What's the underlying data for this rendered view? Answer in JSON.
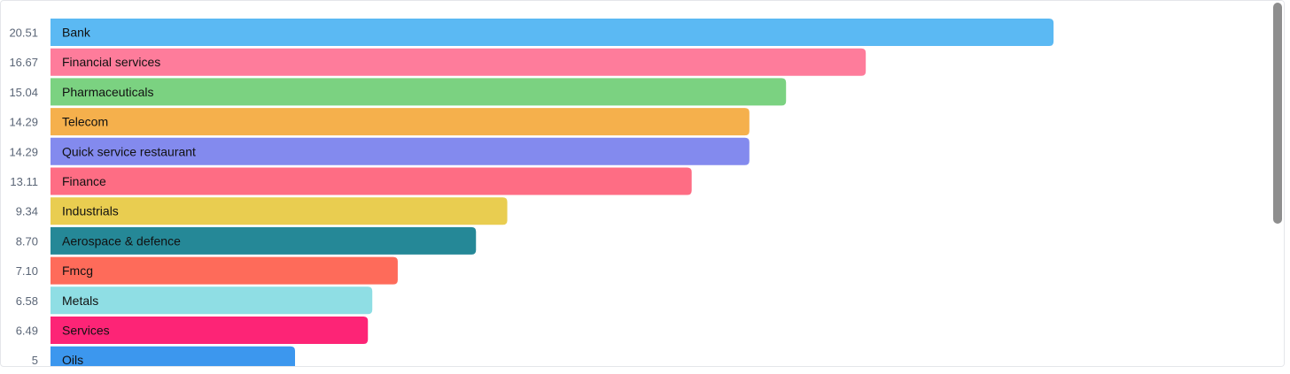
{
  "chart_data": {
    "type": "bar",
    "orientation": "horizontal",
    "categories": [
      "Bank",
      "Financial services",
      "Pharmaceuticals",
      "Telecom",
      "Quick service restaurant",
      "Finance",
      "Industrials",
      "Aerospace & defence",
      "Fmcg",
      "Metals",
      "Services",
      "Oils"
    ],
    "values": [
      20.51,
      16.67,
      15.04,
      14.29,
      14.29,
      13.11,
      9.34,
      8.7,
      7.1,
      6.58,
      6.49,
      5
    ],
    "value_labels": [
      "20.51",
      "16.67",
      "15.04",
      "14.29",
      "14.29",
      "13.11",
      "9.34",
      "8.70",
      "7.10",
      "6.58",
      "6.49",
      "5"
    ],
    "colors": [
      "#5bb9f3",
      "#fe7c9b",
      "#7bd281",
      "#f5b04c",
      "#838aee",
      "#fe6d84",
      "#e9cd50",
      "#258897",
      "#fe6b5a",
      "#8fdee4",
      "#fd2476",
      "#3c97ee"
    ],
    "title": "",
    "xlabel": "",
    "ylabel": "",
    "legend": "none",
    "grid": false
  }
}
